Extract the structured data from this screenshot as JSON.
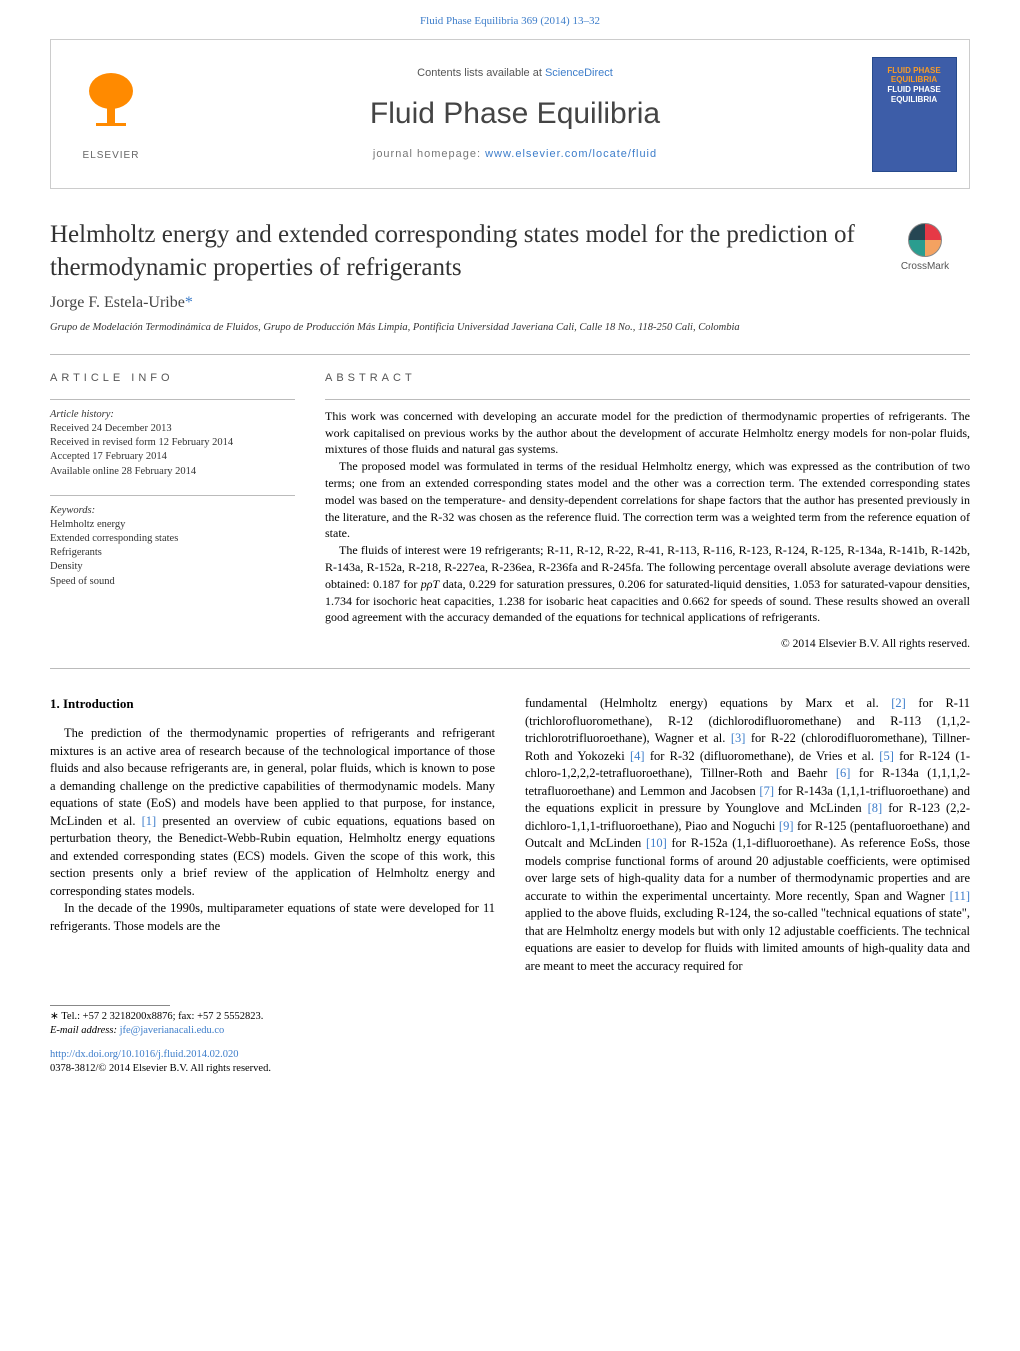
{
  "citation": {
    "journal_link_text": "Fluid Phase Equilibria 369 (2014) 13–32",
    "journal_link_color": "#3d7dca"
  },
  "masthead": {
    "elsevier_label": "ELSEVIER",
    "elsevier_logo_color": "#ff8a00",
    "contents_prefix": "Contents lists available at ",
    "contents_link": "ScienceDirect",
    "journal_name": "Fluid Phase Equilibria",
    "homepage_prefix": "journal homepage: ",
    "homepage_link": "www.elsevier.com/locate/fluid",
    "cover_lines": [
      "FLUID PHASE",
      "EQUILIBRIA",
      "FLUID PHASE",
      "EQUILIBRIA"
    ],
    "cover_bg": "#3d5da8",
    "cover_accent1": "#f59b2a",
    "cover_accent2": "#ffffff"
  },
  "article": {
    "title": "Helmholtz energy and extended corresponding states model for the prediction of thermodynamic properties of refrigerants",
    "crossmark_label": "CrossMark",
    "author_name": "Jorge F. Estela-Uribe",
    "author_marker": "*",
    "affiliation": "Grupo de Modelación Termodinámica de Fluidos, Grupo de Producción Más Limpia, Pontificia Universidad Javeriana Cali, Calle 18 No., 118-250 Cali, Colombia"
  },
  "article_info": {
    "heading": "article info",
    "history_label": "Article history:",
    "history": [
      "Received 24 December 2013",
      "Received in revised form 12 February 2014",
      "Accepted 17 February 2014",
      "Available online 28 February 2014"
    ],
    "keywords_label": "Keywords:",
    "keywords": [
      "Helmholtz energy",
      "Extended corresponding states",
      "Refrigerants",
      "Density",
      "Speed of sound"
    ]
  },
  "abstract": {
    "heading": "abstract",
    "paragraphs": [
      "This work was concerned with developing an accurate model for the prediction of thermodynamic properties of refrigerants. The work capitalised on previous works by the author about the development of accurate Helmholtz energy models for non-polar fluids, mixtures of those fluids and natural gas systems.",
      "The proposed model was formulated in terms of the residual Helmholtz energy, which was expressed as the contribution of two terms; one from an extended corresponding states model and the other was a correction term. The extended corresponding states model was based on the temperature- and density-dependent correlations for shape factors that the author has presented previously in the literature, and the R-32 was chosen as the reference fluid. The correction term was a weighted term from the reference equation of state.",
      "The fluids of interest were 19 refrigerants; R-11, R-12, R-22, R-41, R-113, R-116, R-123, R-124, R-125, R-134a, R-141b, R-142b, R-143a, R-152a, R-218, R-227ea, R-236ea, R-236fa and R-245fa. The following percentage overall absolute average deviations were obtained: 0.187 for pρT data, 0.229 for saturation pressures, 0.206 for saturated-liquid densities, 1.053 for saturated-vapour densities, 1.734 for isochoric heat capacities, 1.238 for isobaric heat capacities and 0.662 for speeds of sound. These results showed an overall good agreement with the accuracy demanded of the equations for technical applications of refrigerants."
    ],
    "copyright": "© 2014 Elsevier B.V. All rights reserved."
  },
  "intro": {
    "heading": "1.  Introduction",
    "left_paragraphs": [
      "The prediction of the thermodynamic properties of refrigerants and refrigerant mixtures is an active area of research because of the technological importance of those fluids and also because refrigerants are, in general, polar fluids, which is known to pose a demanding challenge on the predictive capabilities of thermodynamic models. Many equations of state (EoS) and models have been applied to that purpose, for instance, McLinden et al. [1] presented an overview of cubic equations, equations based on perturbation theory, the Benedict-Webb-Rubin equation, Helmholtz energy equations and extended corresponding states (ECS) models. Given the scope of this work, this section presents only a brief review of the application of Helmholtz energy and corresponding states models.",
      "In the decade of the 1990s, multiparameter equations of state were developed for 11 refrigerants. Those models are the"
    ],
    "right_paragraph": "fundamental (Helmholtz energy) equations by Marx et al. [2] for R-11 (trichlorofluoromethane), R-12 (dichlorodifluoromethane) and R-113 (1,1,2-trichlorotrifluoroethane), Wagner et al. [3] for R-22 (chlorodifluoromethane), Tillner-Roth and Yokozeki [4] for R-32 (difluoromethane), de Vries et al. [5] for R-124 (1-chloro-1,2,2,2-tetrafluoroethane), Tillner-Roth and Baehr [6] for R-134a (1,1,1,2-tetrafluoroethane) and Lemmon and Jacobsen [7] for R-143a (1,1,1-trifluoroethane) and the equations explicit in pressure by Younglove and McLinden [8] for R-123 (2,2-dichloro-1,1,1-trifluoroethane), Piao and Noguchi [9] for R-125 (pentafluoroethane) and Outcalt and McLinden [10] for R-152a (1,1-difluoroethane). As reference EoSs, those models comprise functional forms of around 20 adjustable coefficients, were optimised over large sets of high-quality data for a number of thermodynamic properties and are accurate to within the experimental uncertainty. More recently, Span and Wagner [11] applied to the above fluids, excluding R-124, the so-called \"technical equations of state\", that are Helmholtz energy models but with only 12 adjustable coefficients. The technical equations are easier to develop for fluids with limited amounts of high-quality data and are meant to meet the accuracy required for",
    "ref_links": [
      "[1]",
      "[2]",
      "[3]",
      "[4]",
      "[5]",
      "[6]",
      "[7]",
      "[8]",
      "[9]",
      "[10]",
      "[11]"
    ],
    "ref_link_color": "#3d7dca"
  },
  "footnote": {
    "corr_marker": "∗",
    "tel": "Tel.: +57 2 3218200x8876; fax: +57 2 5552823.",
    "email_label": "E-mail address:",
    "email": "jfe@javerianacali.edu.co"
  },
  "doi": {
    "url": "http://dx.doi.org/10.1016/j.fluid.2014.02.020",
    "issn_line": "0378-3812/© 2014 Elsevier B.V. All rights reserved."
  },
  "colors": {
    "link": "#3d7dca",
    "text": "#000000",
    "muted": "#666666",
    "rule": "#bbbbbb"
  },
  "typography": {
    "body_font": "Georgia, serif",
    "sans_font": "Arial, sans-serif",
    "title_fontsize": 25,
    "body_fontsize": 12.5,
    "abstract_fontsize": 12,
    "small_fontsize": 10.5
  }
}
